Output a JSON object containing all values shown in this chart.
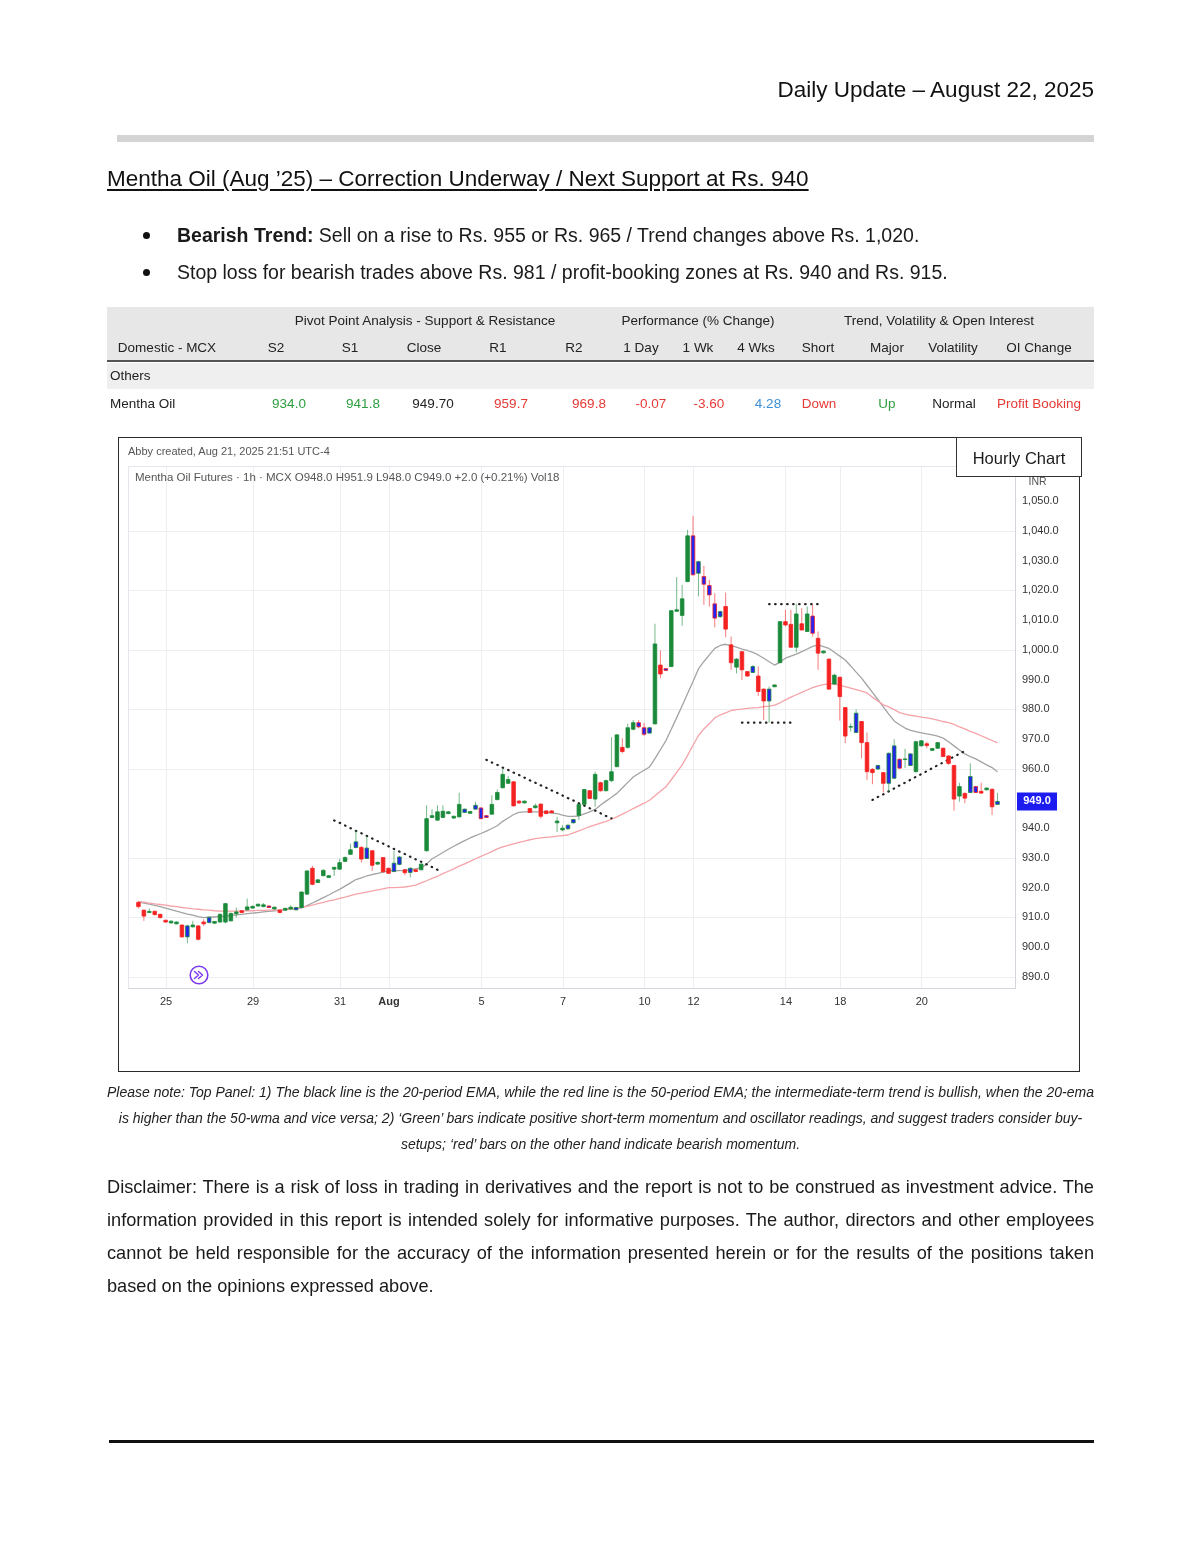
{
  "chart_data": {
    "type": "candlestick",
    "title": "Mentha Oil (Aug ’25) – Correction Underway / Next Support at Rs. 940",
    "subtitle": "Mentha Oil Futures · 1h · MCX O948.0 H951.9 L948.0 C949.0 +2.0 (+0.21%) Vol18",
    "ylabel": "INR",
    "annotations": [
      "Daily Update – August 22, 2025",
      "Bearish Trend:",
      "Sell on a rise to Rs. 955 or Rs. 965 / Trend changes above Rs. 1,020.",
      "Stop loss for bearish trades above Rs. 981 / profit-booking zones at Rs. 940 and Rs. 915.",
      "Pivot Point Analysis - Support & Resistance",
      "Performance (% Change)",
      "Trend, Volatility & Open Interest",
      "Domestic - MCX",
      "S2",
      "S1",
      "Close",
      "R1",
      "R2",
      "1 Day",
      "1 Wk",
      "4 Wks",
      "Short",
      "Major",
      "Volatility",
      "OI Change",
      "Others",
      "Mentha Oil",
      "934.0",
      "941.8",
      "949.70",
      "959.7",
      "969.8",
      "-0.07",
      "-3.60",
      "4.28",
      "Down",
      "Up",
      "Normal",
      "Profit Booking",
      "Abby created, Aug 21, 2025 21:51 UTC-4",
      "Hourly Chart",
      "949.0",
      "Please note: Top Panel: 1) The black line is the 20-period EMA, while the red line is the 50-period EMA; the intermediate-term trend is bullish, when the 20-ema is higher than the 50-wma and vice versa; 2) ‘Green’ bars indicate positive short-term momentum and oscillator readings, and suggest traders consider buy-setups; ‘red’ bars on the other hand indicate bearish momentum.",
      "Disclaimer: There is a risk of loss in trading in derivatives and the report is not to be construed as investment advice. The information provided in this report is intended solely for informative purposes. The author, directors and other employees cannot be held responsible for the accuracy of the information presented herein or for the results of the positions taken based on the opinions expressed above."
    ],
    "categories": [
      null,
      null,
      null,
      null,
      null,
      "25",
      null,
      null,
      null,
      null,
      null,
      null,
      null,
      null,
      null,
      null,
      null,
      null,
      null,
      null,
      null,
      "29",
      null,
      null,
      null,
      null,
      null,
      null,
      null,
      null,
      null,
      null,
      null,
      null,
      null,
      null,
      null,
      "31",
      null,
      null,
      null,
      null,
      null,
      null,
      null,
      null,
      "Aug",
      null,
      null,
      null,
      null,
      null,
      null,
      null,
      null,
      null,
      null,
      null,
      null,
      null,
      null,
      null,
      null,
      "5",
      null,
      null,
      null,
      null,
      null,
      null,
      null,
      null,
      null,
      null,
      null,
      null,
      null,
      null,
      "7",
      null,
      null,
      null,
      null,
      null,
      null,
      null,
      null,
      null,
      null,
      null,
      null,
      null,
      null,
      "10",
      null,
      null,
      null,
      null,
      null,
      null,
      null,
      null,
      "12",
      null,
      null,
      null,
      null,
      null,
      null,
      null,
      null,
      null,
      null,
      null,
      null,
      null,
      null,
      null,
      null,
      "14",
      null,
      null,
      null,
      null,
      null,
      null,
      null,
      null,
      null,
      "18",
      null,
      null,
      null,
      null,
      null,
      null,
      null,
      null,
      null,
      null,
      null,
      null,
      null,
      null,
      "20",
      null,
      null,
      null,
      null,
      null,
      null,
      null,
      null,
      null,
      null,
      null,
      null,
      null,
      null
    ],
    "ohlc": [
      [
        915,
        915.4,
        913,
        913.6
      ],
      [
        912.4,
        912.6,
        908.8,
        910.4
      ],
      [
        911.6,
        913,
        911.4,
        912
      ],
      [
        912,
        912.3,
        910.6,
        910.9
      ],
      [
        911,
        911.2,
        909.6,
        909.9
      ],
      [
        909,
        909.2,
        908.2,
        908.4
      ],
      [
        908.1,
        908.9,
        907.9,
        908.7
      ],
      [
        907.8,
        908.6,
        907.6,
        908.4
      ],
      [
        907.4,
        907.5,
        903.2,
        903.4
      ],
      [
        903.4,
        907.5,
        901.2,
        907.1
      ],
      [
        906.8,
        908.8,
        906.5,
        907.4
      ],
      [
        907.1,
        907.3,
        902.2,
        902.6
      ],
      [
        908.4,
        909.3,
        907.1,
        907.8
      ],
      [
        908.2,
        910.2,
        908,
        909.9
      ],
      [
        908,
        908.7,
        907.8,
        908.6
      ],
      [
        908.4,
        911.3,
        908.2,
        911
      ],
      [
        908.4,
        914.8,
        908,
        914.6
      ],
      [
        908.8,
        911.6,
        908.6,
        911.3
      ],
      [
        911.2,
        913.3,
        909.9,
        911.8
      ],
      [
        912.2,
        912.4,
        911.4,
        911.6
      ],
      [
        912.5,
        916.3,
        912.3,
        913.5
      ],
      [
        913.1,
        913.9,
        912.9,
        913.7
      ],
      [
        913.8,
        914.6,
        913.6,
        914.4
      ],
      [
        913.6,
        914.8,
        913.4,
        914.2
      ],
      [
        913.8,
        914,
        913.1,
        913.3
      ],
      [
        912.8,
        913.6,
        912.6,
        913.4
      ],
      [
        912.4,
        912.6,
        911.4,
        911.6
      ],
      [
        912.4,
        913.2,
        912.2,
        913
      ],
      [
        912.8,
        914,
        912.6,
        913.4
      ],
      [
        912.5,
        913.5,
        912.3,
        913.3
      ],
      [
        913.3,
        918.7,
        913,
        918.5
      ],
      [
        917.8,
        925.8,
        917.5,
        925.6
      ],
      [
        926.5,
        927.3,
        920.8,
        921.1
      ],
      [
        921.7,
        922.9,
        921.5,
        922.6
      ],
      [
        924,
        926.2,
        923.8,
        925.8
      ],
      [
        923.4,
        924.2,
        923.2,
        924
      ],
      [
        926.2,
        927.1,
        923.9,
        926.8
      ],
      [
        926.2,
        929.7,
        926,
        928.4
      ],
      [
        928.8,
        930.5,
        928.6,
        930.1
      ],
      [
        931.2,
        934.8,
        931,
        932.7
      ],
      [
        933.5,
        939.4,
        933.2,
        935.4
      ],
      [
        933.5,
        934,
        928.4,
        929.6
      ],
      [
        929.8,
        937.4,
        929.6,
        933.3
      ],
      [
        932.4,
        932.6,
        925.6,
        927.5
      ],
      [
        927.9,
        928.7,
        927.7,
        928.5
      ],
      [
        930.1,
        930.3,
        925.1,
        925.3
      ],
      [
        926.5,
        926.7,
        924.6,
        924.8
      ],
      [
        925.4,
        932.4,
        925.2,
        928.2
      ],
      [
        927.8,
        930.6,
        927.5,
        930.3
      ],
      [
        926,
        926.2,
        924.2,
        925
      ],
      [
        925.1,
        926.8,
        923.4,
        926.5
      ],
      [
        926,
        926.2,
        925.2,
        925.4
      ],
      [
        926,
        928.2,
        925.8,
        927.9
      ],
      [
        932.4,
        947.7,
        932.1,
        943.2
      ],
      [
        943.6,
        946.4,
        943.4,
        944.2
      ],
      [
        942.7,
        947.7,
        942.5,
        945.5
      ],
      [
        943.6,
        947.7,
        943.4,
        945.7
      ],
      [
        944.9,
        945.7,
        944.7,
        945.5
      ],
      [
        943.4,
        944.2,
        943.2,
        944
      ],
      [
        943.8,
        951.9,
        943.6,
        948
      ],
      [
        945.3,
        946.6,
        945.1,
        946.4
      ],
      [
        945,
        945.8,
        944.8,
        945.6
      ],
      [
        946.4,
        948.9,
        946.2,
        947.7
      ],
      [
        946.8,
        947,
        943,
        943.2
      ],
      [
        944.2,
        944.4,
        943.4,
        943.6
      ],
      [
        944.7,
        951.1,
        944.5,
        948
      ],
      [
        949.6,
        953,
        949.4,
        952
      ],
      [
        953.6,
        960.1,
        953.4,
        958.1
      ],
      [
        955.1,
        957.5,
        954.9,
        956.4
      ],
      [
        955.6,
        955.8,
        947.3,
        947.5
      ],
      [
        949.1,
        949.5,
        948.1,
        948.5
      ],
      [
        948.5,
        949.3,
        948.3,
        949.1
      ],
      [
        946.6,
        946.8,
        945.1,
        945.3
      ],
      [
        946.9,
        948.3,
        946.6,
        947.5
      ],
      [
        948.1,
        948.3,
        943.2,
        944
      ],
      [
        945.8,
        946,
        944.7,
        944.9
      ],
      [
        945.8,
        946,
        945,
        945.2
      ],
      [
        941.8,
        943.8,
        938.7,
        942.4
      ],
      [
        939.4,
        941,
        939.1,
        940
      ],
      [
        939.8,
        941.2,
        939.4,
        941
      ],
      [
        941.8,
        943.1,
        941.6,
        942.9
      ],
      [
        944.3,
        948.2,
        942.7,
        948
      ],
      [
        948,
        953.2,
        947.8,
        953
      ],
      [
        952.6,
        952.8,
        949.8,
        950
      ],
      [
        949.8,
        959,
        947.2,
        958.1
      ],
      [
        955.3,
        955.6,
        952.3,
        952.6
      ],
      [
        952.6,
        956.3,
        952.4,
        956
      ],
      [
        956,
        970.6,
        955.5,
        959
      ],
      [
        960.7,
        971.6,
        960.5,
        971.4
      ],
      [
        967.2,
        970.3,
        965.2,
        965.8
      ],
      [
        967.2,
        975.2,
        966.8,
        973.8
      ],
      [
        973.3,
        976.4,
        972.9,
        975.5
      ],
      [
        975.5,
        976.4,
        973.6,
        974.1
      ],
      [
        973.8,
        975.5,
        971,
        971.6
      ],
      [
        972,
        974.1,
        971.8,
        973.8
      ],
      [
        975.1,
        1008.8,
        974.9,
        1002
      ],
      [
        994.9,
        999.8,
        990.5,
        991.9
      ],
      [
        993.7,
        993.9,
        992.9,
        993.1
      ],
      [
        994.4,
        1013.4,
        994.2,
        1013.2
      ],
      [
        1013,
        1024.5,
        1012.9,
        1013.5
      ],
      [
        1011.6,
        1021.9,
        1008.1,
        1017.2
      ],
      [
        1023,
        1040.4,
        1022.8,
        1038.4
      ],
      [
        1038.4,
        1045.1,
        1025,
        1025.3
      ],
      [
        1025.8,
        1030,
        1018,
        1029.7
      ],
      [
        1024.7,
        1028.3,
        1015.2,
        1022.1
      ],
      [
        1021.7,
        1023.6,
        1014.6,
        1018.5
      ],
      [
        1015.5,
        1019.1,
        1007.6,
        1010.7
      ],
      [
        1011.2,
        1013.2,
        1010.8,
        1012.9
      ],
      [
        1014.6,
        1019.3,
        1004.3,
        1007
      ],
      [
        1001.7,
        1004.5,
        993.3,
        995.7
      ],
      [
        994.2,
        997.2,
        992.1,
        996.9
      ],
      [
        999.4,
        999.6,
        989.9,
        993.3
      ],
      [
        992.7,
        992.9,
        991,
        991.2
      ],
      [
        992.4,
        994.9,
        992.2,
        994.4
      ],
      [
        991.2,
        994.4,
        984.5,
        986
      ],
      [
        986.8,
        987,
        976.4,
        982.8
      ],
      [
        982.8,
        987.7,
        975.5,
        986.8
      ],
      [
        987.6,
        988.4,
        987.4,
        988.2
      ],
      [
        995.7,
        1009.7,
        995.5,
        1009.5
      ],
      [
        1009.5,
        1013.5,
        1007.9,
        1008.4
      ],
      [
        1008.6,
        1013.5,
        1000.7,
        1000.9
      ],
      [
        1000.9,
        1015.5,
        999.1,
        1012.1
      ],
      [
        1008.8,
        1014,
        1006.5,
        1006.7
      ],
      [
        1006.2,
        1014.6,
        1006,
        1012.1
      ],
      [
        1011.4,
        1015.2,
        1004.5,
        1005.6
      ],
      [
        1003.9,
        1006.2,
        993.3,
        998.9
      ],
      [
        999,
        999.8,
        998.8,
        999.6
      ],
      [
        996.9,
        997.1,
        986.6,
        986.8
      ],
      [
        988.5,
        991.9,
        988.3,
        991.5
      ],
      [
        990.8,
        991,
        976.2,
        984.3
      ],
      [
        980.6,
        980.8,
        968.6,
        971
      ],
      [
        974,
        975.3,
        972.5,
        974.2
      ],
      [
        972.2,
        980,
        972,
        978.7
      ],
      [
        975.9,
        976.1,
        963.5,
        968.8
      ],
      [
        968.8,
        972.2,
        956.2,
        959
      ],
      [
        959.8,
        960.2,
        954.8,
        958.7
      ],
      [
        959.9,
        961.3,
        959.7,
        961.1
      ],
      [
        958.7,
        958.9,
        952,
        955.1
      ],
      [
        955.1,
        965.5,
        952,
        965.2
      ],
      [
        956.8,
        969.9,
        956.5,
        967.7
      ],
      [
        963.2,
        963.5,
        959.9,
        960.2
      ],
      [
        963.1,
        966.7,
        960.2,
        963.3
      ],
      [
        961.1,
        965.2,
        960.9,
        965
      ],
      [
        959,
        969.4,
        958.8,
        969.1
      ],
      [
        967.7,
        969.7,
        967.5,
        969.4
      ],
      [
        968.4,
        969.1,
        966.9,
        967.8
      ],
      [
        966.2,
        967,
        966,
        966.8
      ],
      [
        966.9,
        968.9,
        966.7,
        968.8
      ],
      [
        966.9,
        967.1,
        964,
        964.1
      ],
      [
        964.3,
        964.5,
        961.3,
        961.8
      ],
      [
        961.1,
        961.3,
        945.9,
        949.8
      ],
      [
        950.8,
        955.3,
        948.9,
        954
      ],
      [
        951.7,
        952,
        948.4,
        950.1
      ],
      [
        952,
        961.8,
        951.8,
        957.4
      ],
      [
        954,
        954.2,
        951.8,
        952
      ],
      [
        952.4,
        955.3,
        951.7,
        951.8
      ],
      [
        952.9,
        953.7,
        952.7,
        953.5
      ],
      [
        953.1,
        953.3,
        944.4,
        947.2
      ],
      [
        948,
        951.9,
        948,
        949
      ]
    ],
    "colors": [
      "#f52222",
      "#f52222",
      "#1a8a3a",
      "#f52222",
      "#f52222",
      "#f52222",
      "#1a8a3a",
      "#1a8a3a",
      "#f52222",
      "#2424f0",
      "#1a8a3a",
      "#f52222",
      "#f52222",
      "#2424f0",
      "#1a8a3a",
      "#1a8a3a",
      "#1a8a3a",
      "#1a8a3a",
      "#1a8a3a",
      "#f52222",
      "#1a8a3a",
      "#1a8a3a",
      "#1a8a3a",
      "#1a8a3a",
      "#2424f0",
      "#1a8a3a",
      "#f52222",
      "#1a8a3a",
      "#1a8a3a",
      "#2424f0",
      "#1a8a3a",
      "#1a8a3a",
      "#f52222",
      "#1a8a3a",
      "#1a8a3a",
      "#1a8a3a",
      "#1a8a3a",
      "#1a8a3a",
      "#1a8a3a",
      "#1a8a3a",
      "#2424f0",
      "#f52222",
      "#2424f0",
      "#f52222",
      "#1a8a3a",
      "#f52222",
      "#f52222",
      "#2424f0",
      "#2424f0",
      "#f52222",
      "#2424f0",
      "#f52222",
      "#1a8a3a",
      "#1a8a3a",
      "#1a8a3a",
      "#1a8a3a",
      "#1a8a3a",
      "#1a8a3a",
      "#1a8a3a",
      "#1a8a3a",
      "#2424f0",
      "#1a8a3a",
      "#2424f0",
      "#2424f0",
      "#2424f0",
      "#1a8a3a",
      "#1a8a3a",
      "#1a8a3a",
      "#1a8a3a",
      "#f52222",
      "#f52222",
      "#1a8a3a",
      "#f52222",
      "#1a8a3a",
      "#f52222",
      "#f52222",
      "#f52222",
      "#1a8a3a",
      "#1a8a3a",
      "#2424f0",
      "#2424f0",
      "#1a8a3a",
      "#1a8a3a",
      "#f52222",
      "#1a8a3a",
      "#f52222",
      "#1a8a3a",
      "#1a8a3a",
      "#1a8a3a",
      "#f52222",
      "#1a8a3a",
      "#1a8a3a",
      "#2424f0",
      "#2424f0",
      "#2424f0",
      "#1a8a3a",
      "#f52222",
      "#2424f0",
      "#1a8a3a",
      "#1a8a3a",
      "#1a8a3a",
      "#1a8a3a",
      "#2424f0",
      "#2424f0",
      "#2424f0",
      "#2424f0",
      "#2424f0",
      "#2424f0",
      "#f52222",
      "#f52222",
      "#1a8a3a",
      "#f52222",
      "#f52222",
      "#2424f0",
      "#f52222",
      "#f52222",
      "#2424f0",
      "#1a8a3a",
      "#1a8a3a",
      "#f52222",
      "#f52222",
      "#1a8a3a",
      "#f52222",
      "#1a8a3a",
      "#2424f0",
      "#f52222",
      "#1a8a3a",
      "#f52222",
      "#1a8a3a",
      "#f52222",
      "#f52222",
      "#1a8a3a",
      "#2424f0",
      "#f52222",
      "#f52222",
      "#f52222",
      "#2424f0",
      "#f52222",
      "#2424f0",
      "#2424f0",
      "#2424f0",
      "#1a8a3a",
      "#2424f0",
      "#1a8a3a",
      "#1a8a3a",
      "#f52222",
      "#1a8a3a",
      "#1a8a3a",
      "#f52222",
      "#f52222",
      "#f52222",
      "#1a8a3a",
      "#f52222",
      "#2424f0",
      "#2424f0",
      "#f52222",
      "#1a8a3a",
      "#f52222",
      "#2424f0"
    ],
    "series": [
      {
        "type": "line",
        "color": "#a3a3a3",
        "values": [
          915.2,
          914.8,
          914.4,
          914.0,
          913.6,
          913.1,
          912.6,
          912.1,
          911.6,
          911.1,
          910.7,
          910.2,
          909.9,
          910.1,
          910.1,
          910.3,
          910.4,
          910.6,
          910.8,
          911,
          911.2,
          911.4,
          911.6,
          911.8,
          912,
          912.2,
          912.4,
          912.6,
          912.7,
          913,
          913.2,
          913.9,
          914.8,
          915.7,
          916.6,
          917.5,
          918.5,
          919.4,
          920.5,
          921.6,
          922.7,
          923.3,
          923.9,
          924.4,
          924.8,
          925.2,
          925.6,
          925.7,
          925.7,
          925.8,
          926,
          926.3,
          926.6,
          927.9,
          929.7,
          930.7,
          931.8,
          932.9,
          933.9,
          934.9,
          935.8,
          936.7,
          937.5,
          938.2,
          939,
          939.9,
          940.8,
          942.3,
          943.4,
          944.6,
          945.3,
          945.5,
          945.5,
          945.5,
          945.5,
          945.4,
          945.1,
          944.9,
          944.4,
          944,
          944,
          944.1,
          944.8,
          945.5,
          946.3,
          947.8,
          949.1,
          950.4,
          951.7,
          953.5,
          955.4,
          957.2,
          958.4,
          959.5,
          960.6,
          963.4,
          966.4,
          969.4,
          973.3,
          977.2,
          981.2,
          985.3,
          989.4,
          993.6,
          996.1,
          998.3,
          1000.5,
          1001.5,
          1001.9,
          1001.4,
          1000.9,
          1000.3,
          999.8,
          999.2,
          998.3,
          997.2,
          996,
          994.9,
          995.9,
          997.2,
          997.9,
          998.6,
          999.4,
          1000.3,
          1001.2,
          1001.7,
          1001.1,
          1000.5,
          999.2,
          997.9,
          996.6,
          994.6,
          992.5,
          990.5,
          988.1,
          985.7,
          983.3,
          980.8,
          978.4,
          976.1,
          974.8,
          973.7,
          972.9,
          972.5,
          972.1,
          971.7,
          971.4,
          971,
          970.3,
          969.1,
          967.7,
          966.3,
          965,
          964.1,
          963.3,
          962.3,
          961.3,
          960.4,
          959
        ]
      },
      {
        "type": "line",
        "color": "#f5a3a8",
        "values": [
          915.3,
          915.1,
          914.8,
          914.5,
          914.3,
          914.1,
          913.8,
          913.6,
          913.3,
          913.1,
          912.8,
          912.7,
          912.5,
          912.4,
          912.2,
          912.1,
          912.1,
          912.1,
          912.1,
          912.1,
          912.2,
          912.2,
          912.3,
          912.3,
          912.4,
          912.4,
          912.5,
          912.7,
          912.8,
          912.9,
          913.3,
          913.7,
          914.1,
          914.6,
          915,
          915.5,
          915.9,
          916.4,
          916.8,
          917.3,
          917.8,
          918.1,
          918.5,
          918.9,
          919.2,
          919.6,
          920,
          920,
          920.1,
          920.2,
          920.5,
          920.8,
          921.6,
          922.3,
          923.1,
          923.8,
          924.7,
          925.5,
          926.3,
          927.2,
          928,
          928.8,
          929.7,
          930.5,
          931.3,
          932.1,
          933,
          933.7,
          934.2,
          934.7,
          935.2,
          935.6,
          936.1,
          936.5,
          936.7,
          936.9,
          937.1,
          937.3,
          937.5,
          937.7,
          938.4,
          939.1,
          939.8,
          940.5,
          941.1,
          941.7,
          942.3,
          943,
          943.8,
          944.7,
          945.6,
          946.6,
          947.5,
          948.4,
          949.4,
          950.9,
          952.4,
          953.9,
          956.3,
          958.8,
          961.3,
          964.5,
          967.9,
          971.2,
          973.4,
          975.2,
          977.1,
          978.1,
          978.8,
          979.6,
          979.9,
          980.1,
          980.3,
          980.5,
          980.6,
          980.9,
          981.1,
          981.4,
          982.2,
          983.2,
          984.1,
          984.9,
          985.7,
          986.5,
          987.3,
          987.9,
          988.3,
          988.6,
          988.6,
          988.1,
          987.6,
          987.1,
          986.6,
          986.1,
          985.5,
          984.1,
          982.8,
          981.5,
          980.8,
          979.9,
          978.9,
          978.4,
          978,
          977.7,
          977.4,
          977.1,
          976.8,
          976.4,
          975.9,
          975.5,
          974.9,
          974.1,
          973.4,
          972.6,
          971.9,
          971.1,
          970.3,
          969.5,
          968.7
        ]
      },
      {
        "type": "line",
        "color": "#222222",
        "line_style": "dotted",
        "values": [
          null,
          null,
          null,
          null,
          null,
          null,
          null,
          null,
          null,
          null,
          null,
          null,
          null,
          null,
          null,
          null,
          null,
          null,
          null,
          null,
          null,
          null,
          null,
          null,
          null,
          null,
          null,
          null,
          null,
          null,
          null,
          null,
          null,
          null,
          null,
          null,
          942.6,
          941.8,
          940.9,
          940.0,
          939.1,
          938.3,
          937.4,
          936.5,
          935.6,
          934.8,
          933.9,
          933.0,
          932.1,
          931.3,
          930.4,
          929.5,
          928.7,
          927.8,
          926.9,
          926.0,
          null,
          null,
          null,
          null,
          null,
          null,
          null,
          null,
          963.0,
          962.1,
          961.3,
          960.4,
          959.6,
          958.7,
          957.9,
          957.0,
          956.1,
          955.3,
          954.4,
          953.6,
          952.7,
          951.9,
          951.0,
          950.1,
          949.3,
          948.4,
          947.6,
          946.7,
          945.9,
          945.0,
          944.1,
          943.3,
          null,
          null,
          null,
          null,
          null,
          null,
          null,
          null,
          null,
          null,
          null,
          null,
          null,
          null,
          null,
          null,
          null,
          null,
          null,
          null,
          null,
          null,
          null,
          975.5,
          975.5,
          975.5,
          975.5,
          975.5,
          975.5,
          975.5,
          975.5,
          975.5,
          975.5,
          null,
          null,
          null,
          null,
          null,
          null,
          null,
          null,
          null,
          null,
          null,
          null,
          null,
          null,
          949.5,
          950.5,
          951.4,
          952.4,
          953.4,
          954.4,
          955.3,
          956.3,
          957.3,
          958.2,
          959.2,
          960.2,
          961.2,
          962.1,
          963.1,
          964.1,
          965.0,
          966.0,
          null,
          null,
          null,
          null,
          null,
          null
        ]
      },
      {
        "type": "line",
        "color": "#222222",
        "line_style": "dotted",
        "values": [
          null,
          null,
          null,
          null,
          null,
          null,
          null,
          null,
          null,
          null,
          null,
          null,
          null,
          null,
          null,
          null,
          null,
          null,
          null,
          null,
          null,
          null,
          null,
          null,
          null,
          null,
          null,
          null,
          null,
          null,
          null,
          null,
          null,
          null,
          null,
          null,
          null,
          null,
          null,
          null,
          null,
          null,
          null,
          null,
          null,
          null,
          null,
          null,
          null,
          null,
          null,
          null,
          null,
          null,
          null,
          null,
          null,
          null,
          null,
          null,
          null,
          null,
          null,
          null,
          null,
          null,
          null,
          null,
          null,
          null,
          null,
          null,
          null,
          null,
          null,
          null,
          null,
          null,
          null,
          null,
          null,
          null,
          null,
          null,
          null,
          null,
          null,
          null,
          null,
          null,
          null,
          null,
          null,
          null,
          null,
          null,
          null,
          null,
          null,
          null,
          null,
          null,
          null,
          null,
          null,
          null,
          null,
          null,
          null,
          null,
          null,
          null,
          null,
          null,
          null,
          null,
          1015.4,
          1015.4,
          1015.4,
          1015.4,
          1015.4,
          1015.4,
          1015.4,
          1015.4,
          1015.4,
          1015.4,
          null,
          null,
          null,
          null,
          null,
          null,
          null,
          null,
          null,
          null,
          null,
          null,
          null,
          null,
          null,
          null,
          null,
          null,
          null,
          null,
          null,
          null,
          null,
          null,
          null,
          null,
          null,
          null,
          null,
          null,
          null,
          null,
          null
        ]
      }
    ],
    "ylim": [
      886.2,
      1061.9
    ],
    "yticks": [
      {
        "value": 890,
        "label": "890.0"
      },
      {
        "value": 900,
        "label": "900.0"
      },
      {
        "value": 910,
        "label": "910.0"
      },
      {
        "value": 920,
        "label": "920.0"
      },
      {
        "value": 930,
        "label": "930.0"
      },
      {
        "value": 940,
        "label": "940.0"
      },
      {
        "value": 960,
        "label": "960.0"
      },
      {
        "value": 970,
        "label": "970.0"
      },
      {
        "value": 980,
        "label": "980.0"
      },
      {
        "value": 990,
        "label": "990.0"
      },
      {
        "value": 1000,
        "label": "1,000.0"
      },
      {
        "value": 1010,
        "label": "1,010.0"
      },
      {
        "value": 1020,
        "label": "1,020.0"
      },
      {
        "value": 1030,
        "label": "1,030.0"
      },
      {
        "value": 1040,
        "label": "1,040.0"
      },
      {
        "value": 1050,
        "label": "1,050.0"
      }
    ],
    "grid": true
  }
}
